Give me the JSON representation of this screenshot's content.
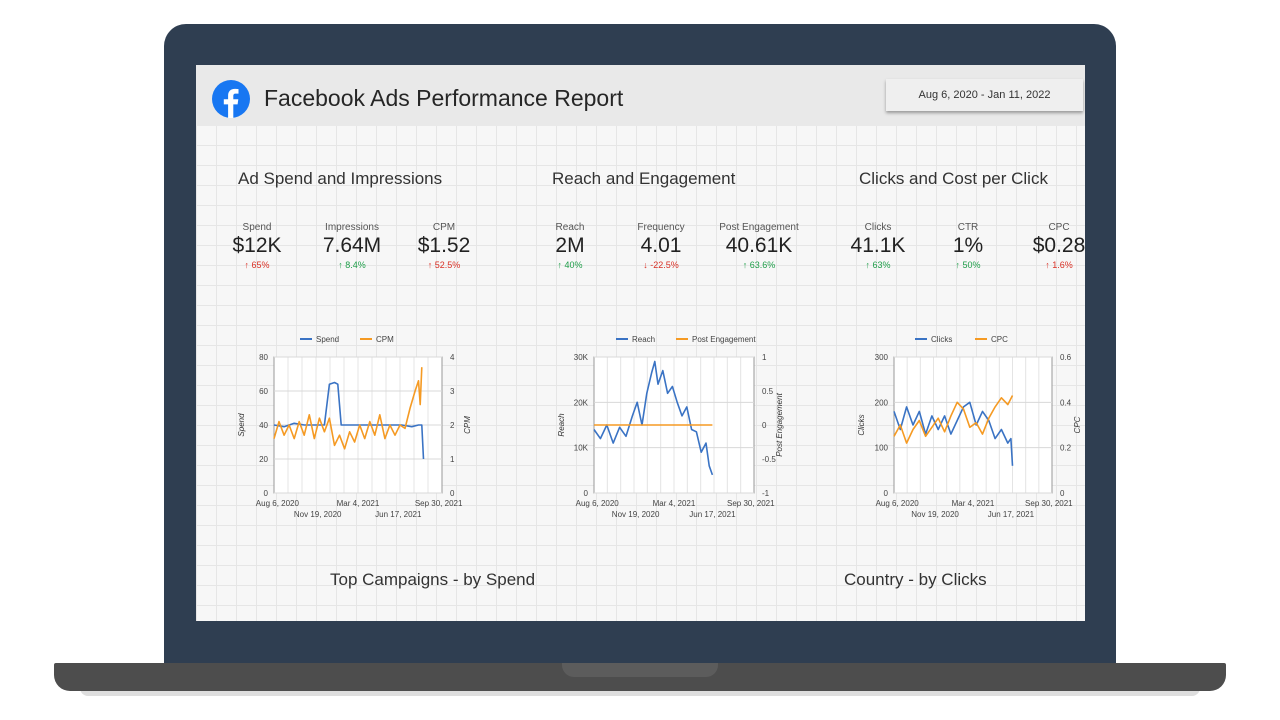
{
  "report": {
    "title": "Facebook Ads Performance Report",
    "date_range": "Aug 6, 2020 - Jan 11, 2022"
  },
  "colors": {
    "series_blue": "#3a73c4",
    "series_orange": "#f59a23",
    "positive": "#1e9e49",
    "negative": "#d93025"
  },
  "sections": [
    {
      "title": "Ad Spend and Impressions",
      "kpis": [
        {
          "label": "Spend",
          "value": "$12K",
          "delta": "65%",
          "arrow": "up",
          "tone": "red"
        },
        {
          "label": "Impressions",
          "value": "7.64M",
          "delta": "8.4%",
          "arrow": "up",
          "tone": "green"
        },
        {
          "label": "CPM",
          "value": "$1.52",
          "delta": "52.5%",
          "arrow": "up",
          "tone": "red"
        }
      ]
    },
    {
      "title": "Reach and Engagement",
      "kpis": [
        {
          "label": "Reach",
          "value": "2M",
          "delta": "40%",
          "arrow": "up",
          "tone": "green"
        },
        {
          "label": "Frequency",
          "value": "4.01",
          "delta": "-22.5%",
          "arrow": "down",
          "tone": "red"
        },
        {
          "label": "Post Engagement",
          "value": "40.61K",
          "delta": "63.6%",
          "arrow": "up",
          "tone": "green"
        }
      ]
    },
    {
      "title": "Clicks and Cost per Click",
      "kpis": [
        {
          "label": "Clicks",
          "value": "41.1K",
          "delta": "63%",
          "arrow": "up",
          "tone": "green"
        },
        {
          "label": "CTR",
          "value": "1%",
          "delta": "50%",
          "arrow": "up",
          "tone": "green"
        },
        {
          "label": "CPC",
          "value": "$0.28",
          "delta": "1.6%",
          "arrow": "up",
          "tone": "red"
        }
      ]
    }
  ],
  "bottom_sections": {
    "campaigns_title": "Top Campaigns - by Spend",
    "country_title": "Country - by Clicks"
  },
  "chart_data": [
    {
      "type": "line",
      "legend": [
        "Spend",
        "CPM"
      ],
      "ylabel": "Spend",
      "y2label": "CPM",
      "ylim": [
        0,
        80
      ],
      "y2lim": [
        0,
        4
      ],
      "yticks": [
        "80",
        "60",
        "40",
        "20",
        "0"
      ],
      "y2ticks": [
        "4",
        "3",
        "2",
        "1",
        "0"
      ],
      "xticks_top": [
        "Aug 6, 2020",
        "Mar 4, 2021",
        "Sep 30, 2021"
      ],
      "xticks_bottom": [
        "Nov 19, 2020",
        "Jun 17, 2021"
      ],
      "series": [
        {
          "name": "Spend",
          "axis": "left",
          "points": [
            [
              0,
              40
            ],
            [
              0.06,
              39
            ],
            [
              0.12,
              41
            ],
            [
              0.18,
              40
            ],
            [
              0.24,
              40
            ],
            [
              0.3,
              40
            ],
            [
              0.33,
              64
            ],
            [
              0.36,
              65
            ],
            [
              0.38,
              64
            ],
            [
              0.4,
              40
            ],
            [
              0.46,
              40
            ],
            [
              0.52,
              40
            ],
            [
              0.58,
              40
            ],
            [
              0.64,
              40
            ],
            [
              0.7,
              40
            ],
            [
              0.76,
              40
            ],
            [
              0.82,
              39
            ],
            [
              0.86,
              40
            ],
            [
              0.88,
              40
            ],
            [
              0.89,
              20
            ]
          ]
        },
        {
          "name": "CPM",
          "axis": "right",
          "points": [
            [
              0,
              1.6
            ],
            [
              0.03,
              2.1
            ],
            [
              0.06,
              1.7
            ],
            [
              0.09,
              2.0
            ],
            [
              0.12,
              1.6
            ],
            [
              0.15,
              2.1
            ],
            [
              0.18,
              1.7
            ],
            [
              0.21,
              2.3
            ],
            [
              0.24,
              1.6
            ],
            [
              0.27,
              2.2
            ],
            [
              0.3,
              1.8
            ],
            [
              0.33,
              2.2
            ],
            [
              0.36,
              1.4
            ],
            [
              0.39,
              1.7
            ],
            [
              0.42,
              1.3
            ],
            [
              0.45,
              1.8
            ],
            [
              0.48,
              1.5
            ],
            [
              0.51,
              2.0
            ],
            [
              0.54,
              1.6
            ],
            [
              0.57,
              2.1
            ],
            [
              0.6,
              1.7
            ],
            [
              0.63,
              2.3
            ],
            [
              0.66,
              1.6
            ],
            [
              0.69,
              2.0
            ],
            [
              0.72,
              1.7
            ],
            [
              0.75,
              2.0
            ],
            [
              0.78,
              1.9
            ],
            [
              0.81,
              2.5
            ],
            [
              0.84,
              3.0
            ],
            [
              0.86,
              3.3
            ],
            [
              0.87,
              2.6
            ],
            [
              0.88,
              3.7
            ]
          ]
        }
      ]
    },
    {
      "type": "line",
      "legend": [
        "Reach",
        "Post Engagement"
      ],
      "ylabel": "Reach",
      "y2label": "Post Engagement",
      "ylim": [
        0,
        30000
      ],
      "y2lim": [
        -1,
        1
      ],
      "yticks": [
        "30K",
        "20K",
        "10K",
        "0"
      ],
      "y2ticks": [
        "1",
        "0.5",
        "0",
        "-0.5",
        "-1"
      ],
      "xticks_top": [
        "Aug 6, 2020",
        "Mar 4, 2021",
        "Sep 30, 2021"
      ],
      "xticks_bottom": [
        "Nov 19, 2020",
        "Jun 17, 2021"
      ],
      "series": [
        {
          "name": "Reach",
          "axis": "left",
          "points": [
            [
              0,
              14000
            ],
            [
              0.04,
              12000
            ],
            [
              0.08,
              15000
            ],
            [
              0.12,
              11000
            ],
            [
              0.16,
              14500
            ],
            [
              0.2,
              12500
            ],
            [
              0.24,
              17000
            ],
            [
              0.27,
              20000
            ],
            [
              0.3,
              15000
            ],
            [
              0.33,
              22000
            ],
            [
              0.36,
              26500
            ],
            [
              0.38,
              29000
            ],
            [
              0.4,
              24000
            ],
            [
              0.43,
              27000
            ],
            [
              0.46,
              22000
            ],
            [
              0.49,
              23500
            ],
            [
              0.52,
              20000
            ],
            [
              0.55,
              17000
            ],
            [
              0.58,
              19000
            ],
            [
              0.61,
              14000
            ],
            [
              0.64,
              13500
            ],
            [
              0.67,
              9000
            ],
            [
              0.7,
              11000
            ],
            [
              0.72,
              6000
            ],
            [
              0.74,
              4000
            ]
          ]
        },
        {
          "name": "Post Engagement",
          "axis": "right",
          "points": [
            [
              0,
              0
            ],
            [
              0.2,
              0
            ],
            [
              0.4,
              0
            ],
            [
              0.6,
              0
            ],
            [
              0.74,
              0
            ]
          ]
        }
      ]
    },
    {
      "type": "line",
      "legend": [
        "Clicks",
        "CPC"
      ],
      "ylabel": "Clicks",
      "y2label": "CPC",
      "ylim": [
        0,
        300
      ],
      "y2lim": [
        0,
        0.6
      ],
      "yticks": [
        "300",
        "200",
        "100",
        "0"
      ],
      "y2ticks": [
        "0.6",
        "0.4",
        "0.2",
        "0"
      ],
      "xticks_top": [
        "Aug 6, 2020",
        "Mar 4, 2021",
        "Sep 30, 2021"
      ],
      "xticks_bottom": [
        "Nov 19, 2020",
        "Jun 17, 2021"
      ],
      "series": [
        {
          "name": "Clicks",
          "axis": "left",
          "points": [
            [
              0,
              180
            ],
            [
              0.04,
              140
            ],
            [
              0.08,
              190
            ],
            [
              0.12,
              150
            ],
            [
              0.16,
              180
            ],
            [
              0.2,
              130
            ],
            [
              0.24,
              170
            ],
            [
              0.28,
              140
            ],
            [
              0.32,
              170
            ],
            [
              0.36,
              130
            ],
            [
              0.4,
              160
            ],
            [
              0.44,
              190
            ],
            [
              0.48,
              200
            ],
            [
              0.52,
              150
            ],
            [
              0.56,
              180
            ],
            [
              0.6,
              160
            ],
            [
              0.64,
              120
            ],
            [
              0.68,
              140
            ],
            [
              0.72,
              110
            ],
            [
              0.74,
              120
            ],
            [
              0.75,
              60
            ]
          ]
        },
        {
          "name": "CPC",
          "axis": "right",
          "points": [
            [
              0,
              0.25
            ],
            [
              0.04,
              0.3
            ],
            [
              0.08,
              0.22
            ],
            [
              0.12,
              0.28
            ],
            [
              0.16,
              0.32
            ],
            [
              0.2,
              0.25
            ],
            [
              0.24,
              0.29
            ],
            [
              0.28,
              0.33
            ],
            [
              0.32,
              0.27
            ],
            [
              0.36,
              0.34
            ],
            [
              0.4,
              0.4
            ],
            [
              0.44,
              0.37
            ],
            [
              0.48,
              0.29
            ],
            [
              0.52,
              0.31
            ],
            [
              0.56,
              0.26
            ],
            [
              0.6,
              0.33
            ],
            [
              0.64,
              0.38
            ],
            [
              0.68,
              0.42
            ],
            [
              0.72,
              0.39
            ],
            [
              0.75,
              0.43
            ]
          ]
        }
      ]
    }
  ]
}
